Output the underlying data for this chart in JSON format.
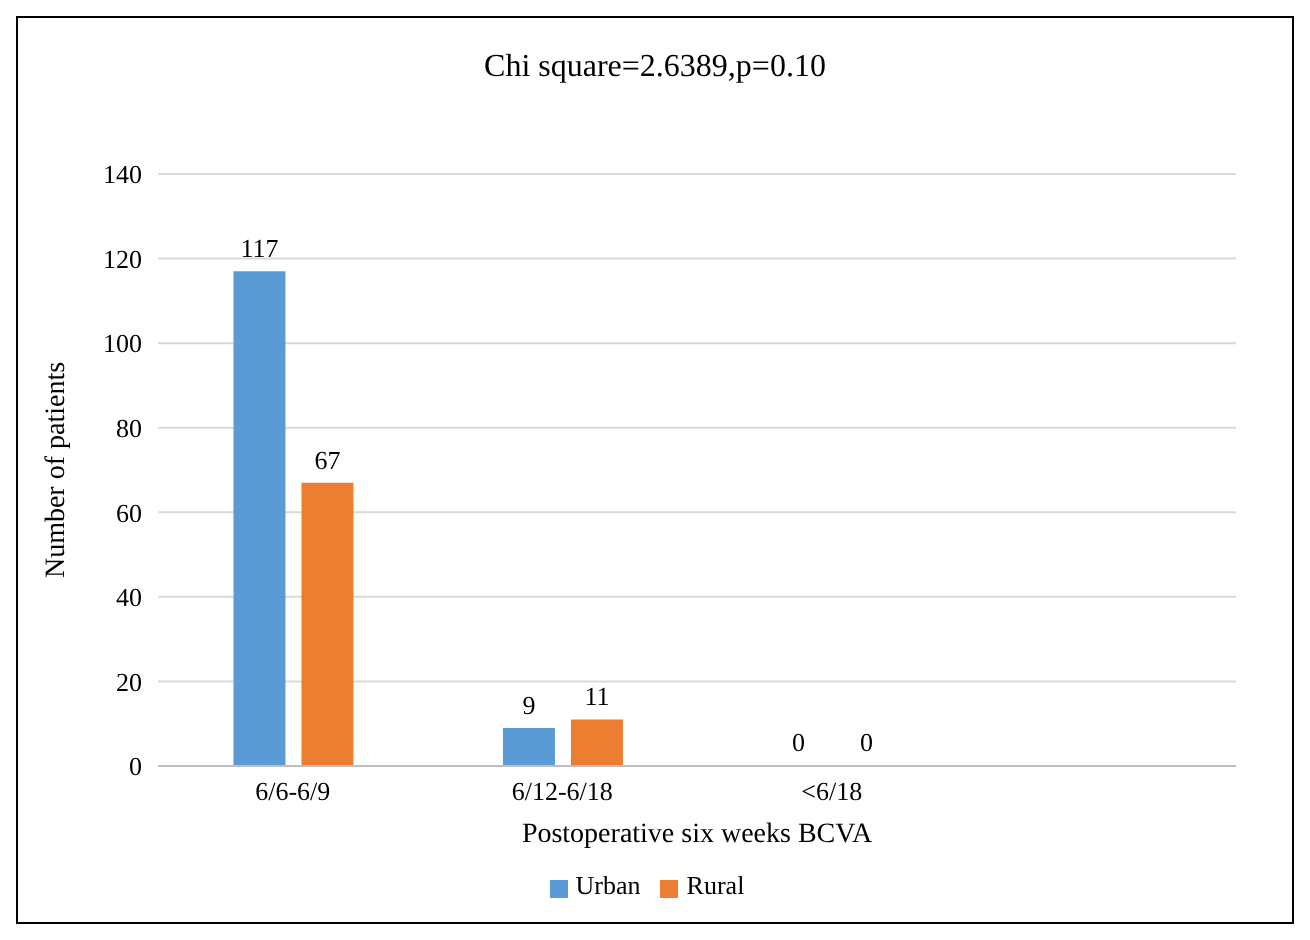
{
  "chart_data": {
    "type": "bar",
    "title": "Chi square=2.6389,p=0.10",
    "xlabel": "Postoperative six weeks BCVA",
    "ylabel": "Number of patients",
    "categories": [
      "6/6-6/9",
      "6/12-6/18",
      "<6/18",
      null
    ],
    "series": [
      {
        "name": "Urban",
        "color": "#5b9bd5",
        "values": [
          117,
          9,
          0,
          null
        ]
      },
      {
        "name": "Rural",
        "color": "#ed7d31",
        "values": [
          67,
          11,
          0,
          null
        ]
      }
    ],
    "ylim": [
      0,
      140
    ],
    "yticks": [
      0,
      20,
      40,
      60,
      80,
      100,
      120,
      140
    ],
    "grid": "y",
    "legend": "bottom",
    "data_labels": true
  }
}
